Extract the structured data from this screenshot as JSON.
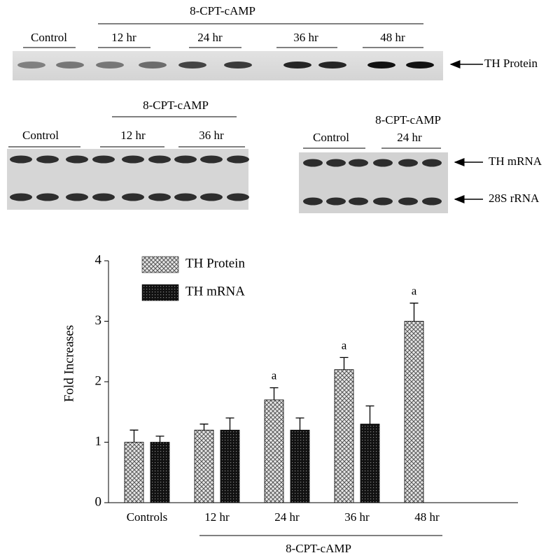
{
  "blots": {
    "protein": {
      "header": "8-CPT-cAMP",
      "lanes": [
        "Control",
        "12 hr",
        "24 hr",
        "36 hr",
        "48 hr"
      ],
      "band_label": "TH Protein"
    },
    "mrna_time": {
      "header": "8-CPT-cAMP",
      "lanes": [
        "Control",
        "12 hr",
        "36 hr"
      ]
    },
    "mrna_24": {
      "header": "8-CPT-cAMP",
      "lanes": [
        "Control",
        "24 hr"
      ],
      "band_labels": [
        "TH mRNA",
        "28S rRNA"
      ]
    }
  },
  "chart_data": {
    "type": "bar",
    "ylabel": "Fold Increases",
    "xgroup_label": "8-CPT-cAMP",
    "categories": [
      "Controls",
      "12 hr",
      "24 hr",
      "36 hr",
      "48 hr"
    ],
    "series": [
      {
        "name": "TH Protein",
        "color": "#bdbdbd",
        "values": [
          1.0,
          1.2,
          1.7,
          2.2,
          3.0
        ],
        "errors": [
          0.2,
          0.1,
          0.2,
          0.2,
          0.3
        ],
        "annotations": [
          null,
          null,
          "a",
          "a",
          "a"
        ]
      },
      {
        "name": "TH mRNA",
        "color": "#111111",
        "values": [
          1.0,
          1.2,
          1.2,
          1.3,
          null
        ],
        "errors": [
          0.1,
          0.2,
          0.2,
          0.3,
          null
        ]
      }
    ],
    "ylim": [
      0,
      4
    ],
    "yticks": [
      0,
      1,
      2,
      3,
      4
    ],
    "legend": "top-left"
  }
}
